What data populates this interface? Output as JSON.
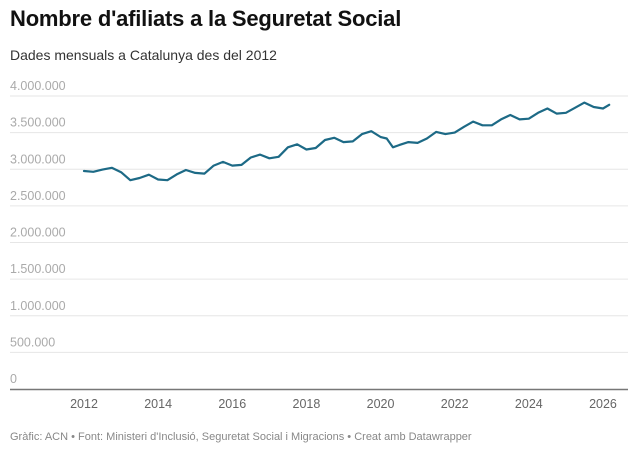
{
  "header": {
    "title": "Nombre d'afiliats a la Seguretat Social",
    "subtitle": "Dades mensuals a Catalunya des del 2012"
  },
  "footer": {
    "text": "Gràfic: ACN • Font: Ministeri d'Inclusió, Seguretat Social i Migracions • Creat amb Datawrapper"
  },
  "colors": {
    "line": "#1d6a86",
    "grid": "#e6e6e6",
    "axis": "#777777"
  },
  "chart_data": {
    "type": "line",
    "title": "Nombre d'afiliats a la Seguretat Social",
    "subtitle": "Dades mensuals a Catalunya des del 2012",
    "xlabel": "",
    "ylabel": "",
    "ylim": [
      0,
      4000000
    ],
    "xlim": [
      "2011-07",
      "2026-07"
    ],
    "grid": true,
    "y_ticks": [
      {
        "value": 0,
        "label": "0"
      },
      {
        "value": 500000,
        "label": "500.000"
      },
      {
        "value": 1000000,
        "label": "1.000.000"
      },
      {
        "value": 1500000,
        "label": "1.500.000"
      },
      {
        "value": 2000000,
        "label": "2.000.000"
      },
      {
        "value": 2500000,
        "label": "2.500.000"
      },
      {
        "value": 3000000,
        "label": "3.000.000"
      },
      {
        "value": 3500000,
        "label": "3.500.000"
      },
      {
        "value": 4000000,
        "label": "4.000.000"
      }
    ],
    "x_ticks": [
      "2012",
      "2014",
      "2016",
      "2018",
      "2020",
      "2022",
      "2024",
      "2026"
    ],
    "series": [
      {
        "x": [
          "2012-01",
          "2012-04",
          "2012-07",
          "2012-10",
          "2013-01",
          "2013-04",
          "2013-07",
          "2013-10",
          "2014-01",
          "2014-04",
          "2014-07",
          "2014-10",
          "2015-01",
          "2015-04",
          "2015-07",
          "2015-10",
          "2016-01",
          "2016-04",
          "2016-07",
          "2016-10",
          "2017-01",
          "2017-04",
          "2017-07",
          "2017-10",
          "2018-01",
          "2018-04",
          "2018-07",
          "2018-10",
          "2019-01",
          "2019-04",
          "2019-07",
          "2019-10",
          "2020-01",
          "2020-03",
          "2020-05",
          "2020-07",
          "2020-10",
          "2021-01",
          "2021-04",
          "2021-07",
          "2021-10",
          "2022-01",
          "2022-04",
          "2022-07",
          "2022-10",
          "2023-01",
          "2023-04",
          "2023-07",
          "2023-10",
          "2024-01",
          "2024-04",
          "2024-07",
          "2024-10",
          "2025-01",
          "2025-04",
          "2025-07",
          "2025-10",
          "2026-01",
          "2026-03"
        ],
        "values": [
          2976000,
          2965000,
          2995000,
          3020000,
          2960000,
          2850000,
          2880000,
          2925000,
          2860000,
          2850000,
          2930000,
          2990000,
          2950000,
          2940000,
          3050000,
          3100000,
          3050000,
          3060000,
          3160000,
          3200000,
          3150000,
          3170000,
          3300000,
          3340000,
          3270000,
          3290000,
          3400000,
          3430000,
          3370000,
          3380000,
          3480000,
          3520000,
          3440000,
          3420000,
          3300000,
          3330000,
          3370000,
          3360000,
          3420000,
          3510000,
          3480000,
          3500000,
          3580000,
          3650000,
          3600000,
          3600000,
          3680000,
          3740000,
          3680000,
          3690000,
          3770000,
          3830000,
          3760000,
          3770000,
          3840000,
          3910000,
          3850000,
          3830000,
          3880000
        ]
      }
    ]
  }
}
